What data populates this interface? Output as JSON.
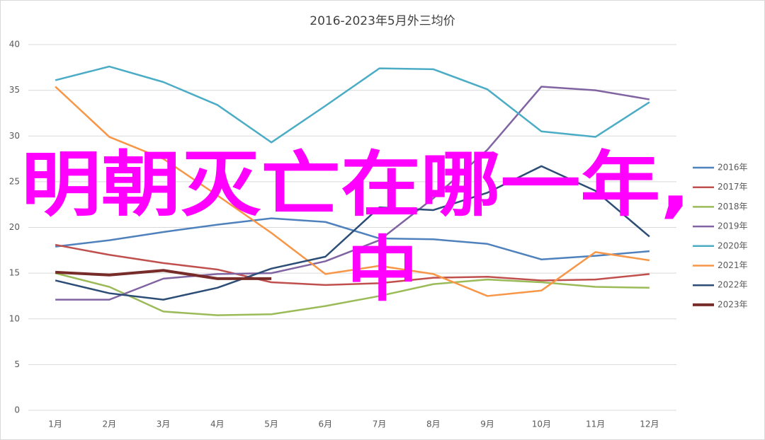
{
  "chart_data": {
    "type": "line",
    "title": "2016-2023年5月外三均价",
    "categories": [
      "1月",
      "2月",
      "3月",
      "4月",
      "5月",
      "6月",
      "7月",
      "8月",
      "9月",
      "10月",
      "11月",
      "12月"
    ],
    "series": [
      {
        "name": "2016年",
        "color": "#4f81bd",
        "values": [
          17.9,
          18.6,
          19.5,
          20.3,
          21.0,
          20.6,
          18.8,
          18.7,
          18.2,
          16.5,
          16.9,
          17.4
        ]
      },
      {
        "name": "2017年",
        "color": "#c0504d",
        "values": [
          18.1,
          17.0,
          16.1,
          15.4,
          14.0,
          13.7,
          13.9,
          14.5,
          14.6,
          14.2,
          14.3,
          14.9
        ]
      },
      {
        "name": "2018年",
        "color": "#9bbb59",
        "values": [
          15.0,
          13.5,
          10.8,
          10.4,
          10.5,
          11.4,
          12.5,
          13.8,
          14.3,
          14.0,
          13.5,
          13.4
        ]
      },
      {
        "name": "2019年",
        "color": "#8064a2",
        "values": [
          12.1,
          12.1,
          14.4,
          14.9,
          15.0,
          16.3,
          18.6,
          23.2,
          28.5,
          35.4,
          35.0,
          34.0
        ]
      },
      {
        "name": "2020年",
        "color": "#4bacc6",
        "values": [
          36.1,
          37.6,
          35.9,
          33.4,
          29.3,
          33.3,
          37.4,
          37.3,
          35.1,
          30.5,
          29.9,
          33.7
        ]
      },
      {
        "name": "2021年",
        "color": "#f79646",
        "values": [
          35.4,
          29.9,
          27.5,
          23.5,
          19.4,
          14.9,
          15.8,
          14.9,
          12.5,
          13.1,
          17.3,
          16.4
        ]
      },
      {
        "name": "2022年",
        "color": "#2c4d75",
        "values": [
          14.2,
          12.8,
          12.1,
          13.4,
          15.5,
          16.8,
          22.2,
          21.9,
          23.8,
          26.7,
          24.0,
          19.0
        ]
      },
      {
        "name": "2023年",
        "color": "#772c2a",
        "values": [
          15.1,
          14.8,
          15.3,
          14.4,
          14.4,
          null,
          null,
          null,
          null,
          null,
          null,
          null
        ]
      }
    ],
    "ylim": [
      0,
      40
    ],
    "yticks": [
      0,
      5,
      10,
      15,
      20,
      25,
      30,
      35,
      40
    ],
    "grid": true,
    "legend": "right",
    "overlay": {
      "lines": [
        "明朝灭亡在哪一年,",
        "中"
      ],
      "color": "#ff00ff"
    }
  }
}
